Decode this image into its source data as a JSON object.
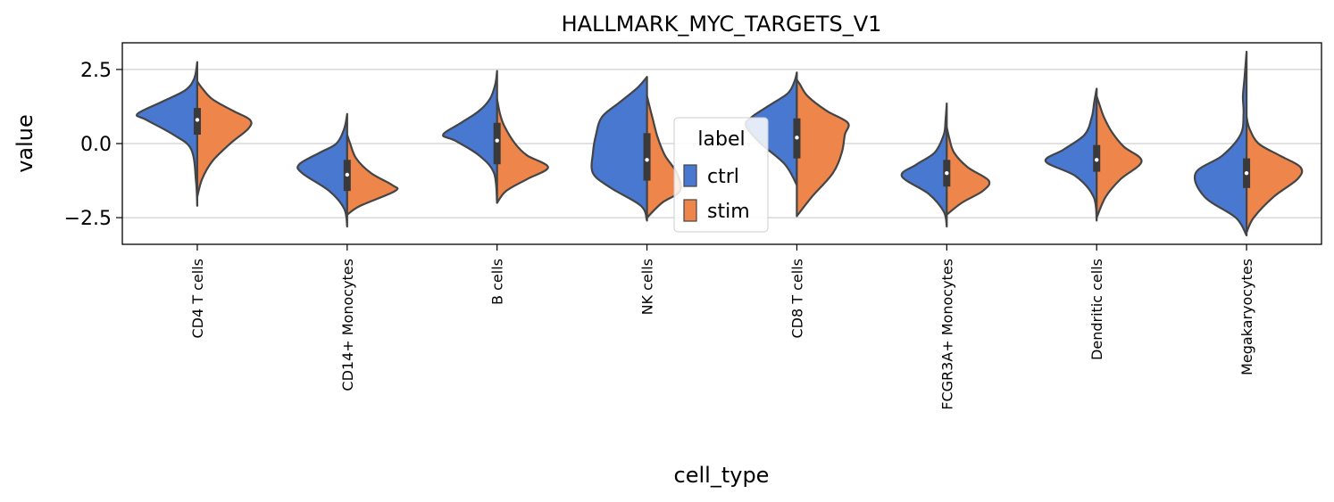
{
  "chart_data": {
    "type": "violin",
    "split": true,
    "title": "HALLMARK_MYC_TARGETS_V1",
    "xlabel": "cell_type",
    "ylabel": "value",
    "ylim": [
      -3.4,
      3.4
    ],
    "yticks": [
      -2.5,
      0.0,
      2.5
    ],
    "ytick_labels": [
      "−2.5",
      "0.0",
      "2.5"
    ],
    "grid": "horizontal",
    "categories": [
      "CD4 T cells",
      "CD14+ Monocytes",
      "B cells",
      "NK cells",
      "CD8 T cells",
      "FCGR3A+ Monocytes",
      "Dendritic cells",
      "Megakaryocytes"
    ],
    "legend": {
      "title": "label",
      "placement": "center",
      "entries": [
        "ctrl",
        "stim"
      ]
    },
    "series": [
      {
        "name": "ctrl",
        "color": "#4878d0"
      },
      {
        "name": "stim",
        "color": "#ee854a"
      }
    ],
    "violins": [
      {
        "category": "CD4 T cells",
        "ctrl": {
          "min": -2.1,
          "max": 2.75,
          "profile": [
            [
              -2.1,
              0.0
            ],
            [
              -1.3,
              0.02
            ],
            [
              -0.2,
              0.1
            ],
            [
              0.3,
              0.4
            ],
            [
              0.8,
              0.85
            ],
            [
              1.0,
              1.0
            ],
            [
              1.4,
              0.6
            ],
            [
              1.8,
              0.2
            ],
            [
              2.2,
              0.05
            ],
            [
              2.75,
              0.0
            ]
          ]
        },
        "stim": {
          "min": -1.8,
          "max": 2.1,
          "profile": [
            [
              -1.8,
              0.0
            ],
            [
              -1.2,
              0.08
            ],
            [
              -0.6,
              0.25
            ],
            [
              0.0,
              0.55
            ],
            [
              0.5,
              0.85
            ],
            [
              0.8,
              0.88
            ],
            [
              1.1,
              0.6
            ],
            [
              1.5,
              0.25
            ],
            [
              1.9,
              0.07
            ],
            [
              2.1,
              0.0
            ]
          ]
        },
        "box": {
          "q1": 0.3,
          "q3": 1.2,
          "median": 0.8
        }
      },
      {
        "category": "CD14+ Monocytes",
        "ctrl": {
          "min": -2.8,
          "max": 1.0,
          "profile": [
            [
              -2.8,
              0.0
            ],
            [
              -2.2,
              0.05
            ],
            [
              -1.6,
              0.3
            ],
            [
              -1.0,
              0.75
            ],
            [
              -0.7,
              0.8
            ],
            [
              -0.3,
              0.45
            ],
            [
              0.0,
              0.18
            ],
            [
              0.5,
              0.05
            ],
            [
              1.0,
              0.0
            ]
          ]
        },
        "stim": {
          "min": -2.4,
          "max": 0.3,
          "profile": [
            [
              -2.4,
              0.0
            ],
            [
              -2.1,
              0.22
            ],
            [
              -1.6,
              0.8
            ],
            [
              -1.4,
              0.75
            ],
            [
              -1.0,
              0.4
            ],
            [
              -0.5,
              0.15
            ],
            [
              0.0,
              0.05
            ],
            [
              0.3,
              0.0
            ]
          ]
        },
        "box": {
          "q1": -1.6,
          "q3": -0.55,
          "median": -1.05
        }
      },
      {
        "category": "B cells",
        "ctrl": {
          "min": -2.0,
          "max": 2.45,
          "profile": [
            [
              -2.0,
              0.0
            ],
            [
              -1.0,
              0.05
            ],
            [
              -0.4,
              0.3
            ],
            [
              0.1,
              0.7
            ],
            [
              0.3,
              0.9
            ],
            [
              0.7,
              0.6
            ],
            [
              1.1,
              0.3
            ],
            [
              1.5,
              0.12
            ],
            [
              2.0,
              0.03
            ],
            [
              2.45,
              0.0
            ]
          ]
        },
        "stim": {
          "min": -2.0,
          "max": 1.5,
          "profile": [
            [
              -2.0,
              0.0
            ],
            [
              -1.6,
              0.15
            ],
            [
              -1.2,
              0.5
            ],
            [
              -0.8,
              0.85
            ],
            [
              -0.4,
              0.5
            ],
            [
              0.0,
              0.3
            ],
            [
              0.6,
              0.12
            ],
            [
              1.0,
              0.05
            ],
            [
              1.5,
              0.0
            ]
          ]
        },
        "box": {
          "q1": -0.7,
          "q3": 0.7,
          "median": 0.1
        }
      },
      {
        "category": "NK cells",
        "ctrl": {
          "min": -2.6,
          "max": 2.25,
          "profile": [
            [
              -2.6,
              0.0
            ],
            [
              -2.1,
              0.1
            ],
            [
              -1.5,
              0.6
            ],
            [
              -1.0,
              0.9
            ],
            [
              -0.3,
              0.9
            ],
            [
              0.3,
              0.85
            ],
            [
              0.9,
              0.75
            ],
            [
              1.4,
              0.45
            ],
            [
              1.9,
              0.15
            ],
            [
              2.25,
              0.0
            ]
          ]
        },
        "stim": {
          "min": -2.5,
          "max": 1.6,
          "profile": [
            [
              -2.5,
              0.0
            ],
            [
              -2.0,
              0.25
            ],
            [
              -1.6,
              0.55
            ],
            [
              -1.0,
              0.5
            ],
            [
              -0.4,
              0.3
            ],
            [
              0.2,
              0.18
            ],
            [
              0.8,
              0.1
            ],
            [
              1.2,
              0.05
            ],
            [
              1.6,
              0.0
            ]
          ]
        },
        "box": {
          "q1": -1.25,
          "q3": 0.35,
          "median": -0.55
        }
      },
      {
        "category": "CD8 T cells",
        "ctrl": {
          "min": -1.4,
          "max": 2.4,
          "profile": [
            [
              -1.4,
              0.0
            ],
            [
              -0.7,
              0.2
            ],
            [
              0.0,
              0.6
            ],
            [
              0.6,
              0.85
            ],
            [
              0.9,
              0.75
            ],
            [
              1.3,
              0.45
            ],
            [
              1.7,
              0.15
            ],
            [
              2.1,
              0.04
            ],
            [
              2.4,
              0.0
            ]
          ]
        },
        "stim": {
          "min": -2.45,
          "max": 2.15,
          "profile": [
            [
              -2.45,
              0.0
            ],
            [
              -1.8,
              0.25
            ],
            [
              -1.0,
              0.6
            ],
            [
              -0.3,
              0.75
            ],
            [
              0.3,
              0.8
            ],
            [
              0.7,
              0.85
            ],
            [
              1.1,
              0.5
            ],
            [
              1.6,
              0.18
            ],
            [
              2.0,
              0.05
            ],
            [
              2.15,
              0.0
            ]
          ]
        },
        "box": {
          "q1": -0.5,
          "q3": 0.85,
          "median": 0.2
        }
      },
      {
        "category": "FCGR3A+ Monocytes",
        "ctrl": {
          "min": -2.8,
          "max": 1.35,
          "profile": [
            [
              -2.8,
              0.0
            ],
            [
              -2.3,
              0.05
            ],
            [
              -1.7,
              0.3
            ],
            [
              -1.1,
              0.75
            ],
            [
              -0.7,
              0.5
            ],
            [
              -0.3,
              0.2
            ],
            [
              0.3,
              0.05
            ],
            [
              0.8,
              0.02
            ],
            [
              1.35,
              0.0
            ]
          ]
        },
        "stim": {
          "min": -2.4,
          "max": 0.55,
          "profile": [
            [
              -2.4,
              0.0
            ],
            [
              -2.0,
              0.25
            ],
            [
              -1.6,
              0.6
            ],
            [
              -1.25,
              0.7
            ],
            [
              -0.8,
              0.35
            ],
            [
              -0.3,
              0.12
            ],
            [
              0.2,
              0.04
            ],
            [
              0.55,
              0.0
            ]
          ]
        },
        "box": {
          "q1": -1.45,
          "q3": -0.55,
          "median": -1.0
        }
      },
      {
        "category": "Dendritic cells",
        "ctrl": {
          "min": -2.6,
          "max": 1.85,
          "profile": [
            [
              -2.6,
              0.0
            ],
            [
              -1.8,
              0.05
            ],
            [
              -1.1,
              0.35
            ],
            [
              -0.6,
              0.85
            ],
            [
              -0.2,
              0.55
            ],
            [
              0.3,
              0.2
            ],
            [
              0.9,
              0.08
            ],
            [
              1.4,
              0.04
            ],
            [
              1.85,
              0.0
            ]
          ]
        },
        "stim": {
          "min": -2.5,
          "max": 1.6,
          "profile": [
            [
              -2.5,
              0.0
            ],
            [
              -1.8,
              0.15
            ],
            [
              -1.2,
              0.4
            ],
            [
              -0.6,
              0.75
            ],
            [
              -0.1,
              0.45
            ],
            [
              0.4,
              0.25
            ],
            [
              0.9,
              0.12
            ],
            [
              1.3,
              0.05
            ],
            [
              1.6,
              0.0
            ]
          ]
        },
        "box": {
          "q1": -0.95,
          "q3": -0.05,
          "median": -0.55
        }
      },
      {
        "category": "Megakaryocytes",
        "ctrl": {
          "min": -3.1,
          "max": 3.1,
          "profile": [
            [
              -3.1,
              0.0
            ],
            [
              -2.5,
              0.18
            ],
            [
              -1.8,
              0.7
            ],
            [
              -1.0,
              0.85
            ],
            [
              -0.4,
              0.4
            ],
            [
              0.3,
              0.1
            ],
            [
              1.0,
              0.05
            ],
            [
              1.6,
              0.06
            ],
            [
              2.3,
              0.03
            ],
            [
              3.1,
              0.0
            ]
          ]
        },
        "stim": {
          "min": -3.0,
          "max": 0.9,
          "profile": [
            [
              -3.0,
              0.0
            ],
            [
              -2.5,
              0.12
            ],
            [
              -1.8,
              0.45
            ],
            [
              -1.2,
              0.85
            ],
            [
              -0.8,
              0.9
            ],
            [
              -0.4,
              0.55
            ],
            [
              0.0,
              0.2
            ],
            [
              0.5,
              0.05
            ],
            [
              0.9,
              0.0
            ]
          ]
        },
        "box": {
          "q1": -1.5,
          "q3": -0.5,
          "median": -1.0
        }
      }
    ]
  }
}
